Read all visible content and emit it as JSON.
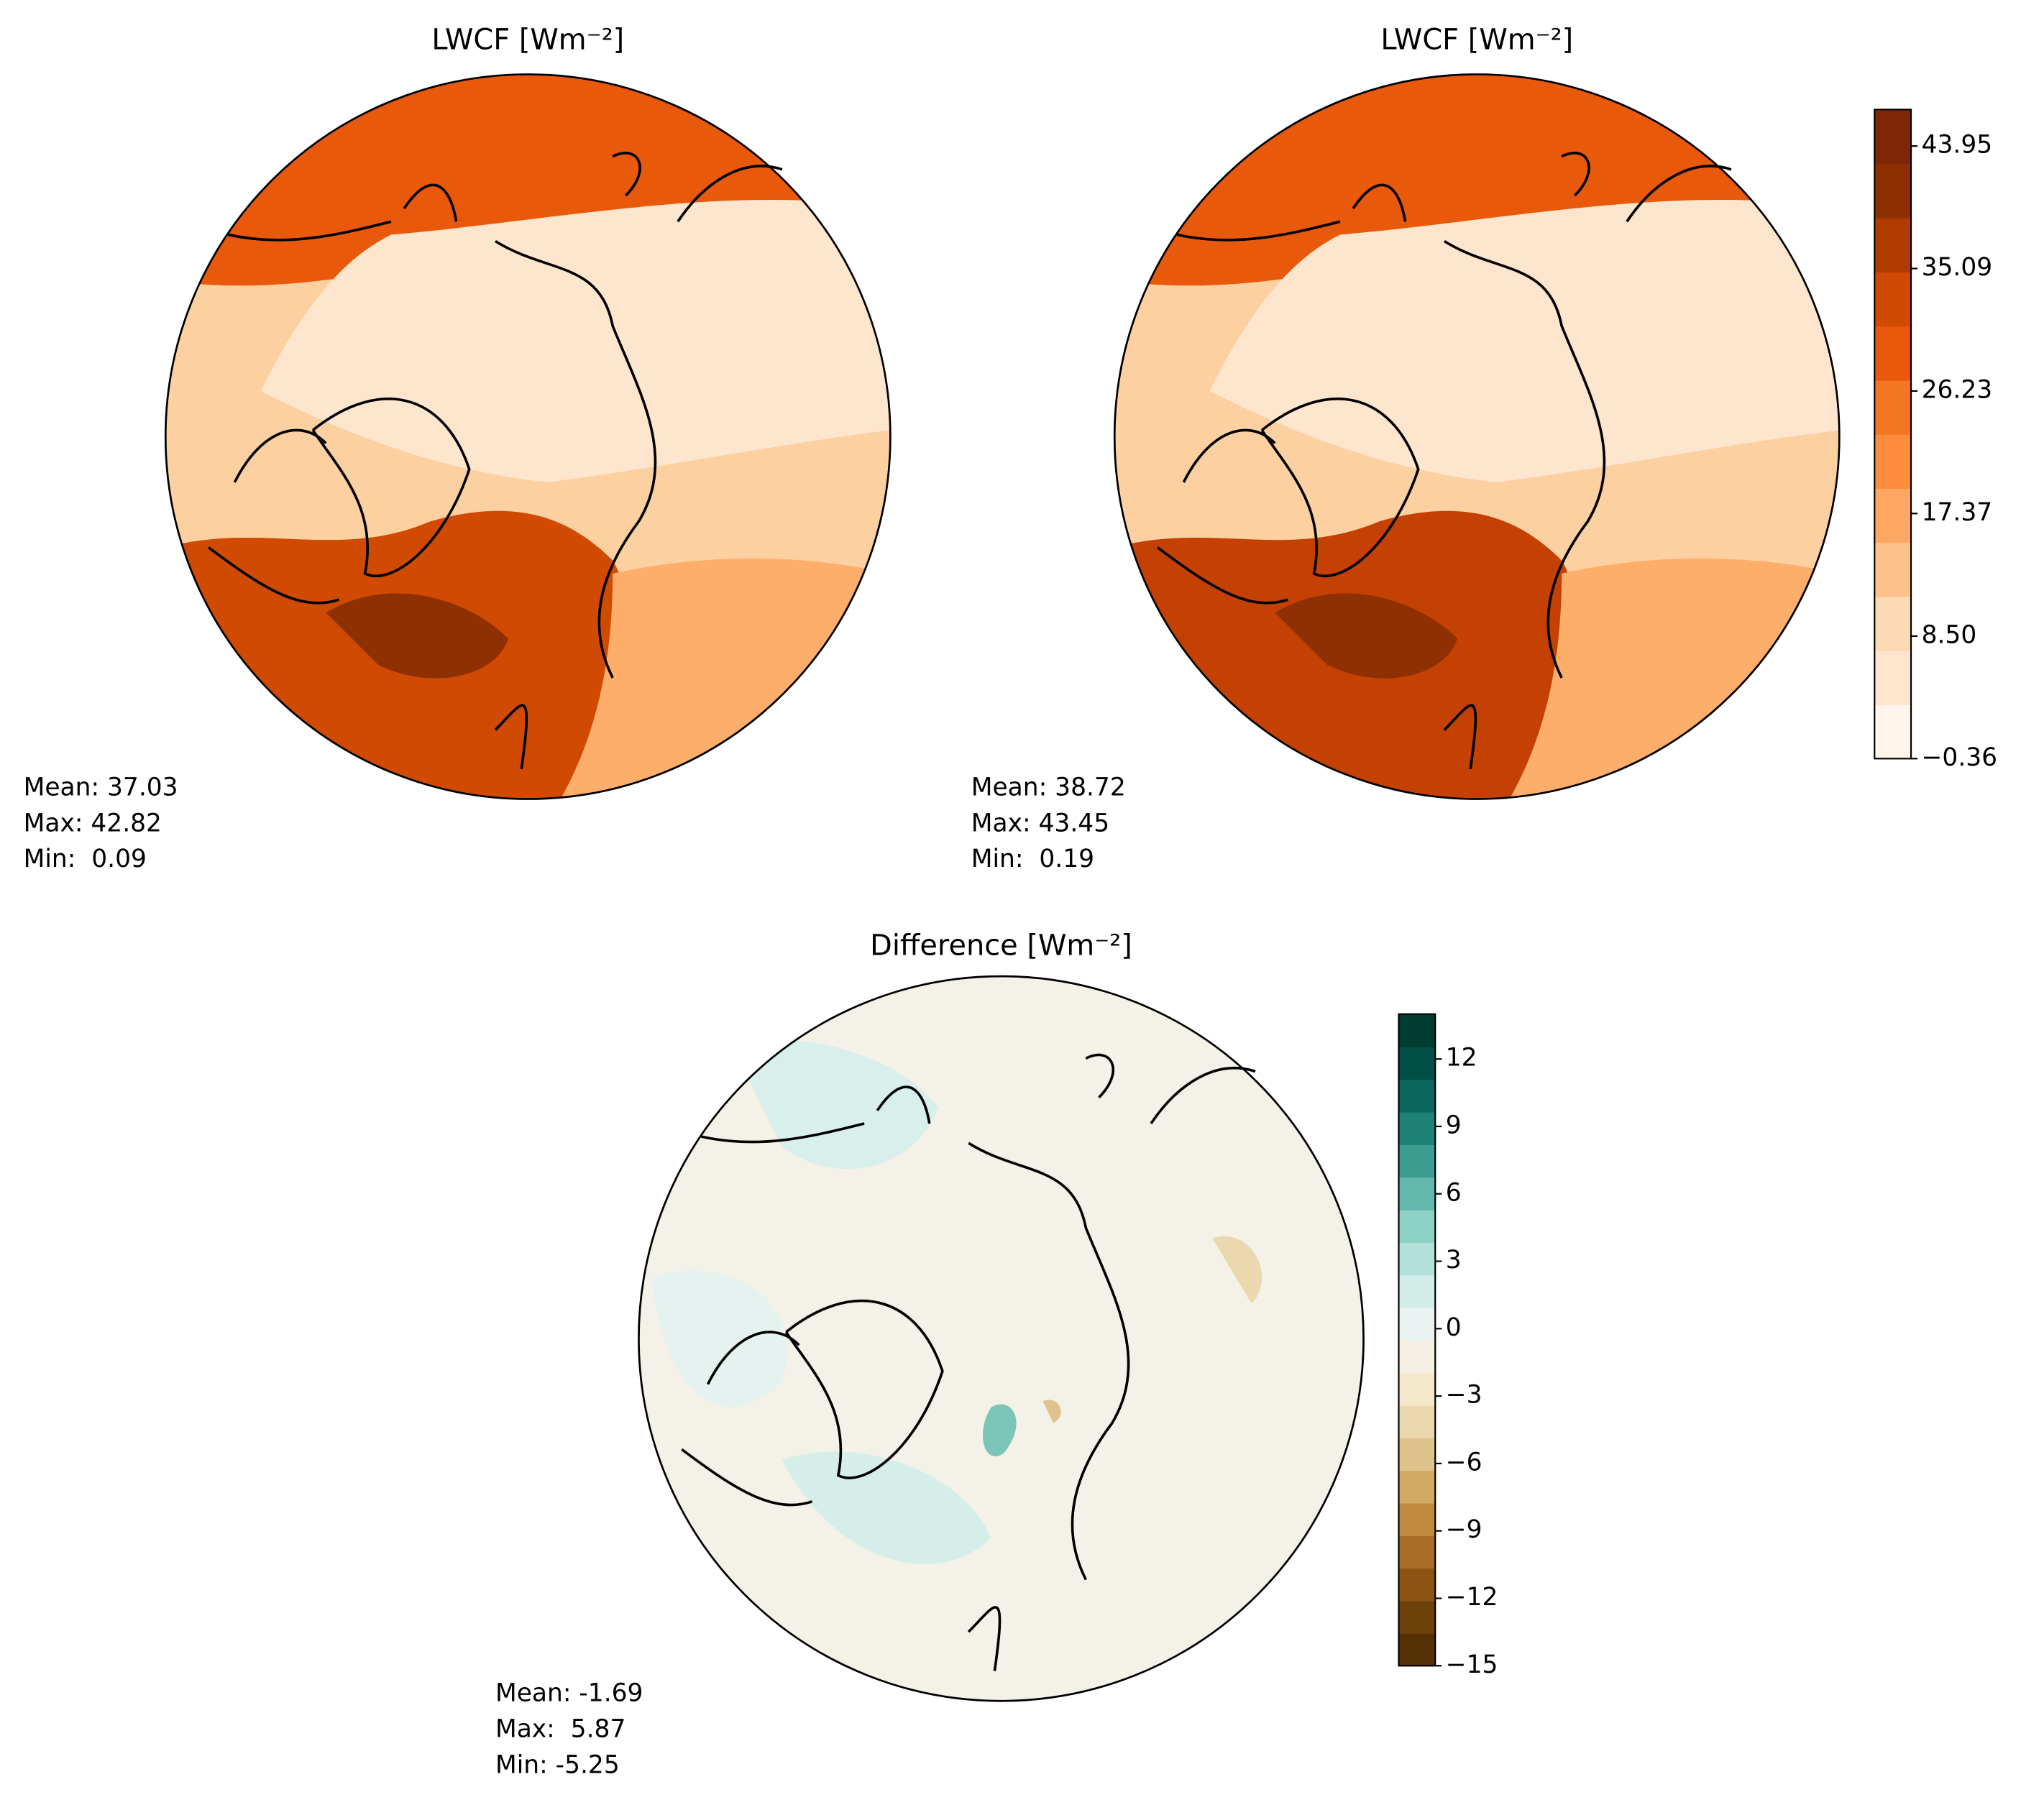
{
  "chart_data": [
    {
      "type": "contour-map",
      "title": "LWCF [Wm⁻²]",
      "stats": [
        "Mean: 37.03",
        "Max: 42.82",
        "Min:  0.09"
      ]
    },
    {
      "type": "contour-map",
      "title": "LWCF [Wm⁻²]",
      "stats": [
        "Mean: 38.72",
        "Max: 43.45",
        "Min:  0.19"
      ],
      "colorbar": {
        "clim": [
          -0.36,
          46.59
        ],
        "ticks": [
          {
            "value": -0.36,
            "label": "−0.36"
          },
          {
            "value": 8.5,
            "label": "8.50"
          },
          17.37,
          26.23,
          35.09,
          43.95
        ],
        "colors": [
          "#fff5eb",
          "#fee6ce",
          "#fdd9b4",
          "#fdc28c",
          "#fda762",
          "#fd8d3c",
          "#f57622",
          "#e8590c",
          "#d04a02",
          "#b13c02",
          "#8f3003",
          "#7f2704"
        ]
      }
    },
    {
      "type": "contour-map",
      "title": "Difference [Wm⁻²]",
      "stats": [
        "Mean: -1.69",
        "Max:  5.87",
        "Min: -5.25"
      ],
      "colorbar": {
        "clim": [
          -15,
          14
        ],
        "ticks": [
          {
            "value": -15,
            "label": "−15"
          },
          {
            "value": -12,
            "label": "−12"
          },
          {
            "value": -9,
            "label": "−9"
          },
          {
            "value": -6,
            "label": "−6"
          },
          {
            "value": -3,
            "label": "−3"
          },
          0,
          3,
          6,
          9,
          12
        ],
        "colors": [
          "#543005",
          "#6e410b",
          "#8c5313",
          "#a86d26",
          "#bf8a3f",
          "#d2a865",
          "#dfc38c",
          "#ebd8ae",
          "#f3e7cc",
          "#f5f0e4",
          "#eaf3f1",
          "#d2ece8",
          "#b3e0d9",
          "#8dd0c4",
          "#64b8ab",
          "#3d9d91",
          "#1f8278",
          "#0b675e",
          "#004f45",
          "#003c30"
        ]
      }
    }
  ]
}
